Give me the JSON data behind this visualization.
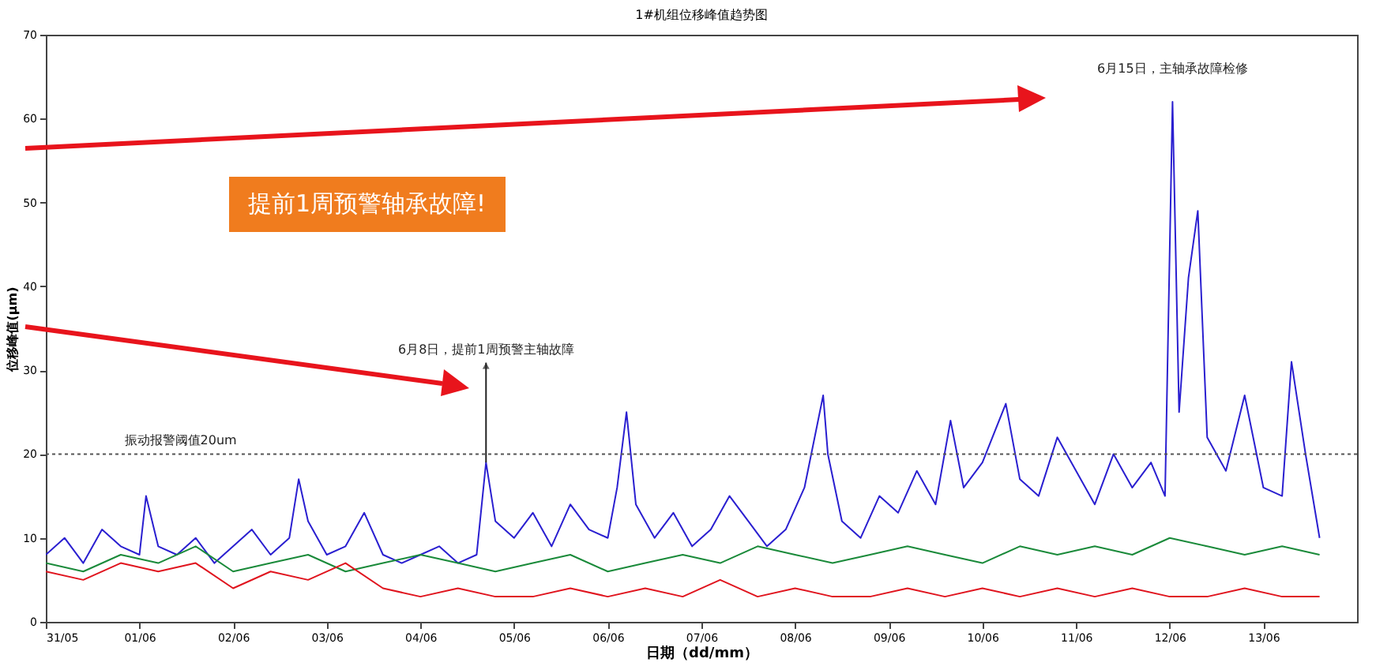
{
  "chart_data": {
    "type": "line",
    "title": "1#机组位移峰值趋势图",
    "xlabel": "日期（dd/mm）",
    "ylabel": "位移峰值(μm)",
    "xlim": [
      "--05-31",
      "--06-14"
    ],
    "xticks": [
      {
        "value": "--05-31",
        "label": "31/05"
      },
      {
        "value": "--06-01",
        "label": "01/06"
      },
      {
        "value": "--06-02",
        "label": "02/06"
      },
      {
        "value": "--06-03",
        "label": "03/06"
      },
      {
        "value": "--06-04",
        "label": "04/06"
      },
      {
        "value": "--06-05",
        "label": "05/06"
      },
      {
        "value": "--06-06",
        "label": "06/06"
      },
      {
        "value": "--06-07",
        "label": "07/06"
      },
      {
        "value": "--06-08",
        "label": "08/06"
      },
      {
        "value": "--06-09",
        "label": "09/06"
      },
      {
        "value": "--06-10",
        "label": "10/06"
      },
      {
        "value": "--06-11",
        "label": "11/06"
      },
      {
        "value": "--06-12",
        "label": "12/06"
      },
      {
        "value": "--06-13",
        "label": "13/06"
      }
    ],
    "ylim": [
      0,
      70
    ],
    "yticks": [
      0,
      10,
      20,
      30,
      40,
      50,
      60,
      70
    ],
    "grid": false,
    "series": [
      {
        "color": "#2a1fd0",
        "x": [
          "--05-31T00:00",
          "--05-31T04:48",
          "--05-31T09:36",
          "--05-31T14:24",
          "--05-31T19:12",
          "--06-01T00:00",
          "--06-01T01:41",
          "--06-01T04:48",
          "--06-01T09:36",
          "--06-01T14:24",
          "--06-01T19:12",
          "--06-02T00:00",
          "--06-02T04:48",
          "--06-02T09:36",
          "--06-02T14:24",
          "--06-02T16:48",
          "--06-02T19:12",
          "--06-03T00:00",
          "--06-03T04:48",
          "--06-03T09:36",
          "--06-03T14:24",
          "--06-03T19:12",
          "--06-04T00:00",
          "--06-04T04:48",
          "--06-04T09:36",
          "--06-04T14:24",
          "--06-04T16:48",
          "--06-04T19:12",
          "--06-05T00:00",
          "--06-05T04:48",
          "--06-05T09:36",
          "--06-05T14:24",
          "--06-05T19:12",
          "--06-06T00:00",
          "--06-06T02:24",
          "--06-06T04:48",
          "--06-06T07:12",
          "--06-06T12:00",
          "--06-06T16:48",
          "--06-06T21:36",
          "--06-07T02:24",
          "--06-07T07:12",
          "--06-07T12:00",
          "--06-07T16:48",
          "--06-07T21:36",
          "--06-08T02:24",
          "--06-08T07:12",
          "--06-08T08:24",
          "--06-08T12:00",
          "--06-08T16:48",
          "--06-08T21:36",
          "--06-09T02:24",
          "--06-09T07:12",
          "--06-09T12:00",
          "--06-09T15:50",
          "--06-09T19:12",
          "--06-10T00:00",
          "--06-10T06:00",
          "--06-10T09:36",
          "--06-10T14:24",
          "--06-10T19:12",
          "--06-11T00:00",
          "--06-11T04:48",
          "--06-11T09:36",
          "--06-11T14:24",
          "--06-11T19:12",
          "--06-11T22:48",
          "--06-12T00:43",
          "--06-12T02:24",
          "--06-12T04:48",
          "--06-12T07:12",
          "--06-12T09:36",
          "--06-12T14:24",
          "--06-12T19:12",
          "--06-13T00:00",
          "--06-13T04:48",
          "--06-13T07:12",
          "--06-13T10:48",
          "--06-13T14:24"
        ],
        "values": [
          8,
          10,
          7,
          11,
          9,
          8,
          15,
          9,
          8,
          10,
          7,
          9,
          11,
          8,
          10,
          17,
          12,
          8,
          9,
          13,
          8,
          7,
          8,
          9,
          7,
          8,
          19,
          12,
          10,
          13,
          9,
          14,
          11,
          10,
          16,
          25,
          14,
          10,
          13,
          9,
          11,
          15,
          12,
          9,
          11,
          16,
          27,
          20,
          12,
          10,
          15,
          13,
          18,
          14,
          24,
          16,
          19,
          26,
          17,
          15,
          22,
          18,
          14,
          20,
          16,
          19,
          15,
          62,
          25,
          41,
          49,
          22,
          18,
          27,
          16,
          15,
          31,
          20,
          10
        ]
      },
      {
        "color": "#1a8a3a",
        "x": [
          "--05-31T00:00",
          "--05-31T09:36",
          "--05-31T19:12",
          "--06-01T04:48",
          "--06-01T14:24",
          "--06-02T00:00",
          "--06-02T09:36",
          "--06-02T19:12",
          "--06-03T04:48",
          "--06-03T14:24",
          "--06-04T00:00",
          "--06-04T09:36",
          "--06-04T19:12",
          "--06-05T04:48",
          "--06-05T14:24",
          "--06-06T00:00",
          "--06-06T09:36",
          "--06-06T19:12",
          "--06-07T04:48",
          "--06-07T14:24",
          "--06-08T00:00",
          "--06-08T09:36",
          "--06-08T19:12",
          "--06-09T04:48",
          "--06-09T14:24",
          "--06-10T00:00",
          "--06-10T09:36",
          "--06-10T19:12",
          "--06-11T04:48",
          "--06-11T14:24",
          "--06-12T00:00",
          "--06-12T09:36",
          "--06-12T19:12",
          "--06-13T04:48",
          "--06-13T14:24"
        ],
        "values": [
          7,
          6,
          8,
          7,
          9,
          6,
          7,
          8,
          6,
          7,
          8,
          7,
          6,
          7,
          8,
          6,
          7,
          8,
          7,
          9,
          8,
          7,
          8,
          9,
          8,
          7,
          9,
          8,
          9,
          8,
          10,
          9,
          8,
          9,
          8
        ]
      },
      {
        "color": "#e0141e",
        "x": [
          "--05-31T00:00",
          "--05-31T09:36",
          "--05-31T19:12",
          "--06-01T04:48",
          "--06-01T14:24",
          "--06-02T00:00",
          "--06-02T09:36",
          "--06-02T19:12",
          "--06-03T04:48",
          "--06-03T14:24",
          "--06-04T00:00",
          "--06-04T09:36",
          "--06-04T19:12",
          "--06-05T04:48",
          "--06-05T14:24",
          "--06-06T00:00",
          "--06-06T09:36",
          "--06-06T19:12",
          "--06-07T04:48",
          "--06-07T14:24",
          "--06-08T00:00",
          "--06-08T09:36",
          "--06-08T19:12",
          "--06-09T04:48",
          "--06-09T14:24",
          "--06-10T00:00",
          "--06-10T09:36",
          "--06-10T19:12",
          "--06-11T04:48",
          "--06-11T14:24",
          "--06-12T00:00",
          "--06-12T09:36",
          "--06-12T19:12",
          "--06-13T04:48",
          "--06-13T14:24"
        ],
        "values": [
          6,
          5,
          7,
          6,
          7,
          4,
          6,
          5,
          7,
          4,
          3,
          4,
          3,
          3,
          4,
          3,
          4,
          3,
          5,
          3,
          4,
          3,
          3,
          4,
          3,
          4,
          3,
          4,
          3,
          4,
          3,
          3,
          4,
          3,
          3
        ]
      }
    ],
    "ref_lines": [
      {
        "axis": "y",
        "value": 20,
        "label": "振动报警阈值20um",
        "line_style": "dotted",
        "color": "#555555"
      }
    ],
    "annotations": [
      {
        "text": "6月8日，提前1周预警主轴故障",
        "x": "--06-04T16:48",
        "y": 19
      },
      {
        "text": "6月15日，主轴承故障检修",
        "x": "--06-12T00:43",
        "y": 62
      },
      "提前1周预警轴承故障!"
    ]
  }
}
